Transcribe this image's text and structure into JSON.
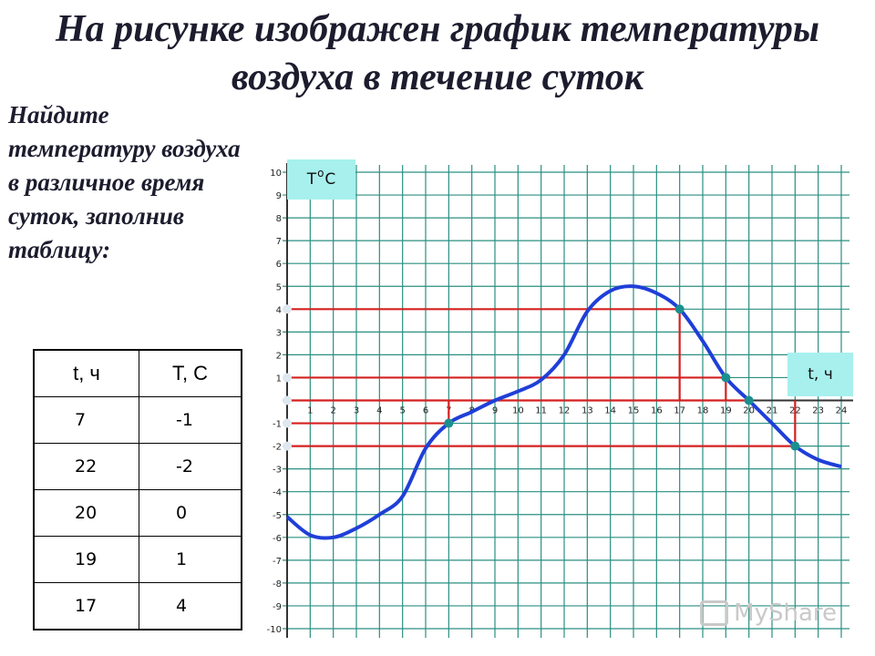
{
  "title": "На рисунке изображен график температуры воздуха в течение суток",
  "task": "Найдите температуру воздуха в различное время суток, заполнив таблицу:",
  "table": {
    "headers": [
      "t, ч",
      "T, C"
    ],
    "rows": [
      [
        "7",
        "-1"
      ],
      [
        "22",
        "-2"
      ],
      [
        "20",
        "0"
      ],
      [
        "19",
        "1"
      ],
      [
        "17",
        "4"
      ]
    ]
  },
  "chart_data": {
    "type": "line",
    "xlim": [
      0,
      24
    ],
    "ylim": [
      -10,
      10
    ],
    "grid": true,
    "y_axis_label": {
      "pre": "T ",
      "sup": "o",
      "post": "C"
    },
    "x_axis_label": "t, ч",
    "x_ticks": [
      1,
      2,
      3,
      4,
      5,
      6,
      7,
      8,
      9,
      10,
      11,
      12,
      13,
      14,
      15,
      16,
      17,
      18,
      19,
      20,
      21,
      22,
      23,
      24
    ],
    "y_ticks": [
      -10,
      -9,
      -8,
      -7,
      -6,
      -5,
      -4,
      -3,
      -2,
      -1,
      1,
      2,
      3,
      4,
      5,
      6,
      7,
      8,
      9,
      10
    ],
    "series": [
      {
        "color": "#1f3fd8",
        "x": [
          0,
          1,
          2,
          3,
          4,
          5,
          6,
          7,
          8,
          9,
          10,
          11,
          12,
          13,
          14,
          15,
          16,
          17,
          18,
          19,
          20,
          21,
          22,
          23,
          24
        ],
        "y": [
          -5.1,
          -5.9,
          -6.0,
          -5.6,
          -5.0,
          -4.2,
          -2.1,
          -1.0,
          -0.5,
          0.0,
          0.4,
          0.9,
          2.0,
          3.9,
          4.8,
          5.0,
          4.7,
          4.0,
          2.6,
          1.0,
          0.0,
          -1.0,
          -2.0,
          -2.6,
          -2.9
        ]
      }
    ],
    "readings": [
      {
        "x": 7,
        "y": -1
      },
      {
        "x": 17,
        "y": 4
      },
      {
        "x": 19,
        "y": 1
      },
      {
        "x": 20,
        "y": 0
      },
      {
        "x": 22,
        "y": -2
      }
    ],
    "colors": {
      "grid": "#2a8f82",
      "curve": "#1f3fd8",
      "guides": "#d42020",
      "points": "#1b8f8f",
      "label_bg": "#a7f0ee"
    }
  },
  "watermark": "MyShare"
}
